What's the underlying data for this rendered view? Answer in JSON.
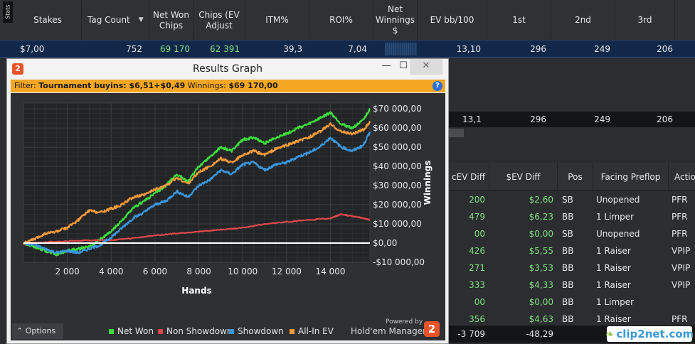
{
  "stats_tab": "Stats",
  "columns": [
    "Stakes",
    "Tag Count",
    "Net Won Chips",
    "Chips (EV Adjust",
    "ITM%",
    "ROI%",
    "Net Winnings $",
    "EV bb/100",
    "1st",
    "2nd",
    "3rd"
  ],
  "selected_row": {
    "stakes": "$7,00",
    "tag_count": "752",
    "net_won_chips": "69 170",
    "chips_ev": "62 391",
    "itm": "39,3",
    "roi": "7,04",
    "ev_bb": "13,10",
    "first": "296",
    "second": "249",
    "third": "206"
  },
  "summary_row": {
    "ev_bb": "13,1",
    "first": "296",
    "second": "249",
    "third": "206"
  },
  "hand_table": {
    "headers": [
      "cEV Diff",
      "$EV Diff",
      "Pos",
      "Facing Preflop",
      "Actio"
    ],
    "rows": [
      [
        "200",
        "$2,60",
        "SB",
        "Unopened",
        "PFR"
      ],
      [
        "479",
        "$6,23",
        "BB",
        "1 Limper",
        "PFR"
      ],
      [
        "00",
        "$0,00",
        "SB",
        "Unopened",
        "PFR"
      ],
      [
        "426",
        "$5,55",
        "BB",
        "1 Raiser",
        "VPIP"
      ],
      [
        "271",
        "$3,53",
        "BB",
        "1 Raiser",
        "VPIP"
      ],
      [
        "333",
        "$4,33",
        "BB",
        "1 Raiser",
        "VPIP"
      ],
      [
        "00",
        "$0,00",
        "BB",
        "1 Limper",
        ""
      ],
      [
        "356",
        "$4,63",
        "BB",
        "1 Raiser",
        "PFR"
      ]
    ],
    "total": [
      "-3 709",
      "-48,29"
    ]
  },
  "watermark": "clip2net.com",
  "dialog": {
    "title": "Results Graph",
    "logo": "2",
    "minimize": "—",
    "maximize": "☐",
    "close": "✕",
    "filter_label": "Filter:",
    "filter_value": "Tournament buyins: $6,51+$0,49",
    "winnings_label": "Winnings:",
    "winnings_value": "$69 170,00",
    "help": "?",
    "options": "Options",
    "powered_by": "Powered by",
    "brand": "Hold'em Manager",
    "brand_logo": "2"
  },
  "chart_data": {
    "type": "line",
    "xlabel": "Hands",
    "ylabel": "Winnings",
    "xlim": [
      0,
      15800
    ],
    "ylim": [
      -10000,
      73000
    ],
    "x_ticks": [
      2000,
      4000,
      6000,
      8000,
      10000,
      12000,
      14000
    ],
    "x_tick_labels": [
      "2 000",
      "4 000",
      "6 000",
      "8 000",
      "10 000",
      "12 000",
      "14 000"
    ],
    "y_ticks": [
      -10000,
      0,
      10000,
      20000,
      30000,
      40000,
      50000,
      60000,
      70000
    ],
    "y_tick_labels": [
      "-$10 000,00",
      "$0,00",
      "$10 000,00",
      "$20 000,00",
      "$30 000,00",
      "$40 000,00",
      "$50 000,00",
      "$60 000,00",
      "$70 000,00"
    ],
    "grid": true,
    "legend": "bottom",
    "series": [
      {
        "name": "Net Won",
        "color": "#3ddc3d",
        "x": [
          0,
          500,
          1000,
          1500,
          2000,
          2500,
          3000,
          3500,
          4000,
          4500,
          5000,
          5500,
          6000,
          6500,
          7000,
          7500,
          8000,
          8500,
          9000,
          9500,
          10000,
          10500,
          11000,
          11500,
          12000,
          12500,
          13000,
          13500,
          14000,
          14500,
          15000,
          15500,
          15800
        ],
        "y": [
          0,
          -2000,
          -4000,
          -6000,
          -4000,
          -3000,
          -2000,
          2000,
          6000,
          12000,
          18000,
          22000,
          26000,
          30000,
          36000,
          32000,
          40000,
          45000,
          50000,
          48000,
          54000,
          55000,
          52000,
          55000,
          57000,
          60000,
          62000,
          65000,
          68000,
          62000,
          60000,
          64000,
          70000
        ]
      },
      {
        "name": "Non Showdown",
        "color": "#e0484b",
        "x": [
          0,
          1000,
          2000,
          3000,
          4000,
          5000,
          6000,
          7000,
          8000,
          9000,
          10000,
          11000,
          12000,
          13000,
          14000,
          14500,
          15000,
          15500,
          15800
        ],
        "y": [
          0,
          500,
          1000,
          1500,
          1500,
          2500,
          4000,
          5000,
          6000,
          7000,
          8000,
          10000,
          11000,
          12000,
          13000,
          15000,
          14000,
          13000,
          12000
        ]
      },
      {
        "name": "Showdown",
        "color": "#3a96dc",
        "x": [
          0,
          500,
          1000,
          1500,
          2000,
          2500,
          3000,
          3500,
          4000,
          4500,
          5000,
          5500,
          6000,
          6500,
          7000,
          7500,
          8000,
          8500,
          9000,
          9500,
          10000,
          10500,
          11000,
          11500,
          12000,
          12500,
          13000,
          13500,
          14000,
          14500,
          15000,
          15500,
          15800
        ],
        "y": [
          0,
          -1000,
          -3000,
          -5000,
          -4000,
          -5000,
          -3000,
          -1000,
          3000,
          8000,
          13000,
          16000,
          20000,
          22000,
          27000,
          24000,
          30000,
          33000,
          38000,
          36000,
          41000,
          42000,
          38000,
          41000,
          42000,
          45000,
          47000,
          50000,
          55000,
          50000,
          48000,
          51000,
          58000
        ]
      },
      {
        "name": "All-In EV",
        "color": "#f39a3a",
        "x": [
          0,
          500,
          1000,
          1500,
          2000,
          2500,
          3000,
          3500,
          4000,
          4500,
          5000,
          5500,
          6000,
          6500,
          7000,
          7500,
          8000,
          8500,
          9000,
          9500,
          10000,
          10500,
          11000,
          11500,
          12000,
          12500,
          13000,
          13500,
          14000,
          14500,
          15000,
          15500,
          15800
        ],
        "y": [
          0,
          2000,
          5000,
          6000,
          8000,
          12000,
          17000,
          16000,
          18000,
          20000,
          24000,
          25000,
          28000,
          30000,
          34000,
          31000,
          37000,
          40000,
          44000,
          42000,
          46000,
          48000,
          46000,
          49000,
          51000,
          53000,
          55000,
          58000,
          62000,
          58000,
          57000,
          59000,
          63000
        ]
      }
    ]
  }
}
